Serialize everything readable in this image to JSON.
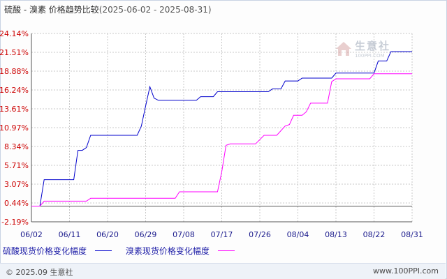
{
  "header": {
    "title": "硫酸 - 溴素 价格趋势比较",
    "date_range": "(2025-06-02 - 2025-08-31)"
  },
  "chart_data": {
    "type": "line",
    "x_labels": [
      "06/02",
      "06/11",
      "06/20",
      "06/29",
      "07/08",
      "07/17",
      "07/26",
      "08/04",
      "08/13",
      "08/22",
      "08/31"
    ],
    "y_ticks": [
      "24.14%",
      "21.51%",
      "18.88%",
      "16.24%",
      "13.61%",
      "10.97%",
      "8.34%",
      "5.71%",
      "3.07%",
      "0.44%",
      "-2.19%"
    ],
    "ylim": [
      -2.19,
      24.14
    ],
    "grid": true,
    "series": [
      {
        "name": "硫酸现货价格变化幅度",
        "color": "#0000cc",
        "points": [
          [
            "06/02",
            0
          ],
          [
            "06/04",
            0
          ],
          [
            "06/05",
            3.7
          ],
          [
            "06/12",
            3.7
          ],
          [
            "06/13",
            7.8
          ],
          [
            "06/14",
            7.8
          ],
          [
            "06/15",
            8.2
          ],
          [
            "06/16",
            9.9
          ],
          [
            "06/27",
            9.9
          ],
          [
            "06/28",
            11.2
          ],
          [
            "06/29",
            14.0
          ],
          [
            "06/30",
            16.7
          ],
          [
            "07/01",
            15.1
          ],
          [
            "07/02",
            14.8
          ],
          [
            "07/11",
            14.8
          ],
          [
            "07/12",
            15.3
          ],
          [
            "07/15",
            15.3
          ],
          [
            "07/16",
            16.0
          ],
          [
            "07/28",
            16.0
          ],
          [
            "07/29",
            16.4
          ],
          [
            "07/31",
            16.4
          ],
          [
            "08/01",
            17.5
          ],
          [
            "08/04",
            17.5
          ],
          [
            "08/05",
            17.9
          ],
          [
            "08/12",
            17.9
          ],
          [
            "08/13",
            18.6
          ],
          [
            "08/22",
            18.6
          ],
          [
            "08/23",
            20.3
          ],
          [
            "08/25",
            20.3
          ],
          [
            "08/26",
            21.6
          ],
          [
            "08/31",
            21.6
          ]
        ]
      },
      {
        "name": "溴素现货价格变化幅度",
        "color": "#ff00ff",
        "points": [
          [
            "06/02",
            0
          ],
          [
            "06/04",
            0
          ],
          [
            "06/05",
            0.7
          ],
          [
            "06/15",
            0.7
          ],
          [
            "06/16",
            1.1
          ],
          [
            "07/06",
            1.1
          ],
          [
            "07/07",
            2.0
          ],
          [
            "07/16",
            2.0
          ],
          [
            "07/17",
            4.8
          ],
          [
            "07/18",
            8.5
          ],
          [
            "07/19",
            8.7
          ],
          [
            "07/25",
            8.7
          ],
          [
            "07/27",
            9.9
          ],
          [
            "07/30",
            9.9
          ],
          [
            "08/01",
            11.2
          ],
          [
            "08/02",
            11.4
          ],
          [
            "08/03",
            12.7
          ],
          [
            "08/05",
            12.7
          ],
          [
            "08/06",
            13.2
          ],
          [
            "08/07",
            14.4
          ],
          [
            "08/11",
            14.4
          ],
          [
            "08/12",
            17.4
          ],
          [
            "08/13",
            17.8
          ],
          [
            "08/21",
            17.8
          ],
          [
            "08/22",
            18.5
          ],
          [
            "08/31",
            18.5
          ]
        ]
      }
    ]
  },
  "legend": {
    "items": [
      {
        "label": "硫酸现货价格变化幅度",
        "color": "#0000cc"
      },
      {
        "label": "溴素现货价格变化幅度",
        "color": "#ff00ff"
      }
    ]
  },
  "watermark": {
    "text_cn": "生意社",
    "text_en": "100PPI.COM",
    "icon": "house-logo-icon"
  },
  "footer": {
    "left": "© 2025.09 生意社",
    "right": "www.100PPI.com"
  }
}
